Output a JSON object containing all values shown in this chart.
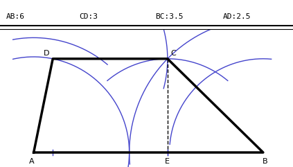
{
  "AB": 6,
  "CD": 3,
  "BC": 3.5,
  "AD": 2.5,
  "bg_color": "#ffffff",
  "line_color_blue": "#4444cc",
  "line_color_black": "#000000",
  "trapezoid_lw": 2.5,
  "construction_lw": 1.0,
  "label_AB": "AB:6",
  "label_CD": "CD:3",
  "label_BC": "BC:3.5",
  "label_AD": "AD:2.5"
}
